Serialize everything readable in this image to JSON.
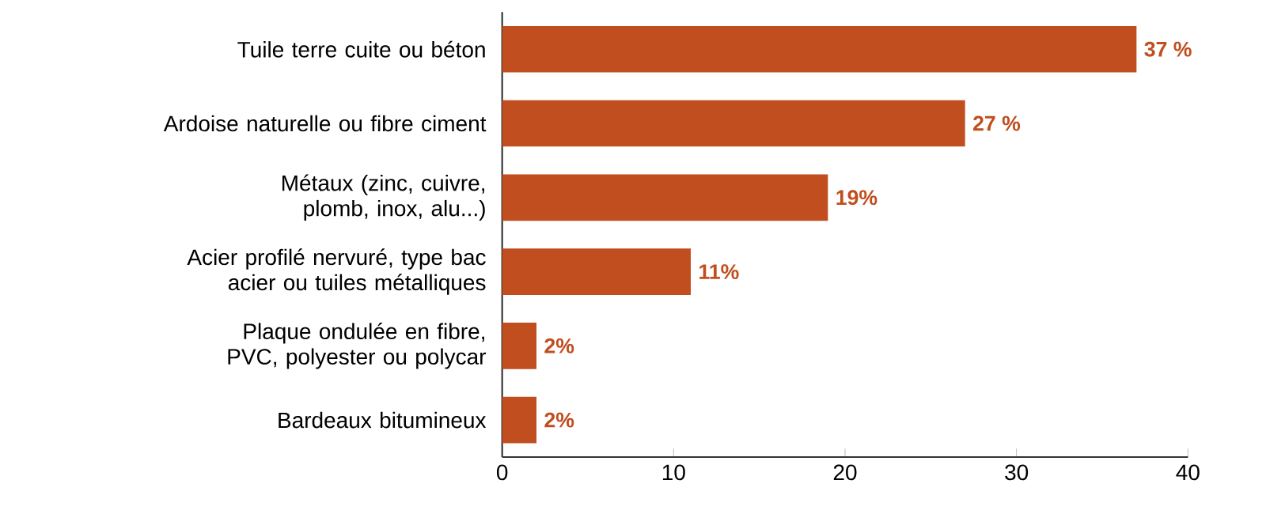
{
  "chart_data": {
    "type": "bar",
    "orientation": "horizontal",
    "categories": [
      "Tuile terre cuite ou béton",
      "Ardoise naturelle ou fibre ciment",
      "Métaux (zinc, cuivre, plomb, inox, alu...)",
      "Acier profilé nervuré, type bac acier ou tuiles métalliques",
      "Plaque ondulée en fibre, PVC, polyester ou polycar",
      "Bardeaux bitumineux"
    ],
    "values": [
      37,
      27,
      19,
      11,
      2,
      2
    ],
    "value_labels": [
      "37 %",
      "27 %",
      "19%",
      "11%",
      "2%",
      "2%"
    ],
    "color": "#c04e1e",
    "xlim": [
      0,
      40
    ],
    "xticks": [
      0,
      10,
      20,
      30,
      40
    ],
    "grid": false
  }
}
